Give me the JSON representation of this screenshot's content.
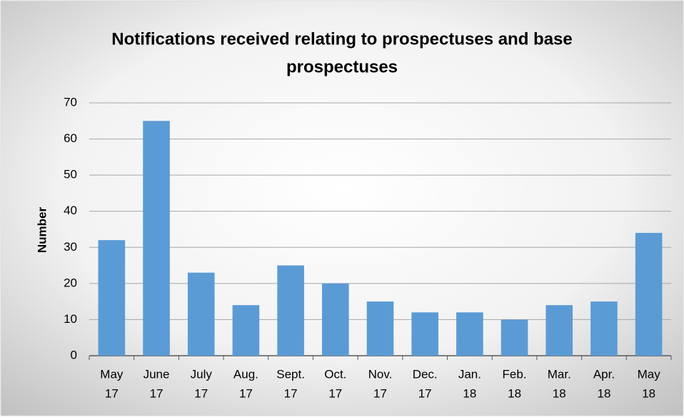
{
  "chart_data": {
    "type": "bar",
    "title": [
      "Notifications received relating to prospectuses and base",
      "prospectuses"
    ],
    "y_label": "Number",
    "categories": [
      [
        "May",
        "17"
      ],
      [
        "June",
        "17"
      ],
      [
        "July",
        "17"
      ],
      [
        "Aug.",
        "17"
      ],
      [
        "Sept.",
        "17"
      ],
      [
        "Oct.",
        "17"
      ],
      [
        "Nov.",
        "17"
      ],
      [
        "Dec.",
        "17"
      ],
      [
        "Jan.",
        "18"
      ],
      [
        "Feb.",
        "18"
      ],
      [
        "Mar.",
        "18"
      ],
      [
        "Apr.",
        "18"
      ],
      [
        "May",
        "18"
      ]
    ],
    "values": [
      32,
      65,
      23,
      14,
      25,
      20,
      15,
      12,
      12,
      10,
      14,
      15,
      34
    ],
    "color": "#5b9bd5",
    "ylim": [
      0,
      70
    ],
    "yticks": [
      0,
      10,
      20,
      30,
      40,
      50,
      60,
      70
    ],
    "grid": true
  }
}
